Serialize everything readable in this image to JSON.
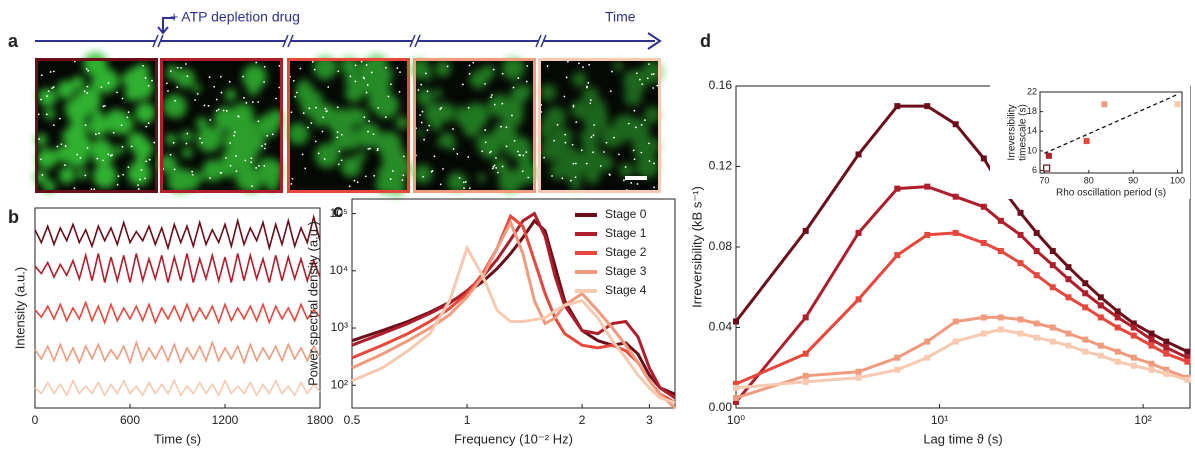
{
  "panel_labels": [
    "a",
    "b",
    "c",
    "d"
  ],
  "timeline": {
    "drug_label": "+ ATP depletion drug",
    "time_label": "Time",
    "color": "#2e3192"
  },
  "images": {
    "frame_colors": [
      "#6b0e1a",
      "#b01e2c",
      "#e8473c",
      "#f09a7e",
      "#f7c9b0"
    ]
  },
  "chart_data": [
    {
      "type": "line",
      "xlabel": "Time (s)",
      "ylabel": "Intensity (a.u.)",
      "x": [
        0,
        40,
        80,
        120,
        160,
        200,
        240,
        280,
        320,
        360,
        400,
        440,
        480,
        520,
        560,
        600,
        640,
        680,
        720,
        760,
        800,
        840,
        880,
        920,
        960,
        1000,
        1040,
        1080,
        1120,
        1160,
        1200,
        1240,
        1280,
        1320,
        1360,
        1400,
        1440,
        1480,
        1520,
        1560,
        1600,
        1640,
        1680,
        1720,
        1760,
        1800
      ],
      "xlim": [
        0,
        1800
      ],
      "xticks": [
        0,
        600,
        1200,
        1800
      ],
      "ylim": [
        0,
        5.5
      ],
      "series": [
        {
          "color": "#6b0e1a",
          "values": [
            4.9,
            4.55,
            5.0,
            4.5,
            4.95,
            4.6,
            5.05,
            4.55,
            4.9,
            4.45,
            5.0,
            4.6,
            4.95,
            4.5,
            5.1,
            4.55,
            4.85,
            4.6,
            5.0,
            4.5,
            4.95,
            4.4,
            5.05,
            4.55,
            5.0,
            4.45,
            5.1,
            4.5,
            4.9,
            4.55,
            5.05,
            4.45,
            5.15,
            4.5,
            4.95,
            4.6,
            5.1,
            4.4,
            5.05,
            4.5,
            5.15,
            4.45,
            4.95,
            4.55,
            5.25,
            4.6
          ]
        },
        {
          "color": "#b01e2c",
          "values": [
            3.9,
            3.7,
            4.0,
            3.6,
            3.95,
            3.65,
            4.05,
            3.55,
            4.2,
            3.5,
            4.25,
            3.45,
            4.15,
            3.5,
            4.2,
            3.45,
            4.25,
            3.5,
            4.1,
            3.55,
            4.2,
            3.45,
            4.15,
            3.5,
            4.25,
            3.45,
            4.1,
            3.55,
            4.2,
            3.5,
            4.15,
            3.45,
            4.25,
            3.5,
            4.2,
            3.55,
            4.1,
            3.45,
            4.2,
            3.5,
            4.15,
            3.55,
            4.1,
            3.5,
            4.05,
            3.6
          ]
        },
        {
          "color": "#e8473c",
          "values": [
            2.7,
            2.5,
            2.8,
            2.45,
            2.85,
            2.4,
            2.75,
            2.45,
            2.9,
            2.4,
            2.8,
            2.35,
            2.85,
            2.4,
            2.75,
            2.45,
            2.8,
            2.4,
            2.85,
            2.35,
            2.75,
            2.45,
            2.8,
            2.4,
            2.85,
            2.4,
            2.75,
            2.45,
            2.8,
            2.35,
            2.85,
            2.4,
            2.75,
            2.45,
            2.8,
            2.4,
            2.85,
            2.35,
            2.8,
            2.45,
            2.75,
            2.4,
            2.85,
            2.45,
            2.7,
            2.5
          ]
        },
        {
          "color": "#f09a7e",
          "values": [
            1.6,
            1.35,
            1.7,
            1.3,
            1.75,
            1.3,
            1.65,
            1.25,
            1.7,
            1.35,
            1.75,
            1.3,
            1.6,
            1.35,
            1.7,
            1.25,
            1.8,
            1.3,
            1.65,
            1.35,
            1.7,
            1.3,
            1.75,
            1.25,
            1.65,
            1.35,
            1.7,
            1.3,
            1.8,
            1.3,
            1.65,
            1.35,
            1.7,
            1.25,
            1.75,
            1.3,
            1.65,
            1.35,
            1.7,
            1.3,
            1.75,
            1.35,
            1.65,
            1.3,
            1.7,
            1.4
          ]
        },
        {
          "color": "#f7c9b0",
          "values": [
            0.55,
            0.4,
            0.7,
            0.4,
            0.65,
            0.35,
            0.75,
            0.4,
            0.6,
            0.4,
            0.7,
            0.35,
            0.65,
            0.4,
            0.75,
            0.4,
            0.6,
            0.35,
            0.7,
            0.4,
            0.65,
            0.4,
            0.75,
            0.35,
            0.6,
            0.4,
            0.7,
            0.4,
            0.65,
            0.35,
            0.75,
            0.4,
            0.6,
            0.4,
            0.7,
            0.35,
            0.65,
            0.4,
            0.75,
            0.4,
            0.6,
            0.35,
            0.7,
            0.4,
            0.65,
            0.45
          ]
        }
      ]
    },
    {
      "type": "line",
      "xlabel": "Frequency (10⁻² Hz)",
      "ylabel": "Power spectral density (a.u.)",
      "xscale": "log",
      "yscale": "log",
      "legend": "upper right",
      "x": [
        0.5,
        0.6,
        0.7,
        0.8,
        0.9,
        1.0,
        1.1,
        1.2,
        1.3,
        1.4,
        1.5,
        1.6,
        1.7,
        1.8,
        2.0,
        2.2,
        2.4,
        2.6,
        2.8,
        3.0,
        3.2,
        3.5
      ],
      "xlim": [
        0.5,
        3.5
      ],
      "xticks": [
        0.5,
        1,
        2,
        3
      ],
      "ylim": [
        40,
        180000
      ],
      "yticks": [
        {
          "value": 100,
          "label": "10²"
        },
        {
          "value": 1000,
          "label": "10³"
        },
        {
          "value": 10000,
          "label": "10⁴"
        },
        {
          "value": 100000,
          "label": "10⁵"
        }
      ],
      "series": [
        {
          "name": "Stage 0",
          "color": "#6b0e1a",
          "values": [
            600,
            900,
            1300,
            1900,
            2800,
            4200,
            6500,
            11000,
            20000,
            38000,
            75000,
            50000,
            12000,
            3000,
            900,
            600,
            500,
            550,
            350,
            150,
            90,
            70
          ]
        },
        {
          "name": "Stage 1",
          "color": "#b01e2c",
          "values": [
            500,
            800,
            1200,
            1800,
            2700,
            4500,
            8000,
            16000,
            35000,
            75000,
            100000,
            40000,
            8000,
            2500,
            900,
            800,
            1200,
            1300,
            700,
            200,
            90,
            60
          ]
        },
        {
          "name": "Stage 2",
          "color": "#e8473c",
          "values": [
            300,
            500,
            800,
            1300,
            2200,
            4000,
            9000,
            25000,
            90000,
            60000,
            15000,
            4000,
            1500,
            800,
            500,
            450,
            500,
            400,
            250,
            120,
            70,
            50
          ]
        },
        {
          "name": "Stage 3",
          "color": "#f09a7e",
          "values": [
            200,
            350,
            600,
            1000,
            1700,
            3500,
            8000,
            25000,
            70000,
            20000,
            3000,
            1200,
            1500,
            2500,
            4000,
            2000,
            1000,
            500,
            250,
            120,
            70,
            40
          ]
        },
        {
          "name": "Stage 4",
          "color": "#f7c9b0",
          "values": [
            120,
            200,
            400,
            800,
            3000,
            25000,
            8000,
            2000,
            1300,
            1300,
            1400,
            1500,
            2000,
            2500,
            3000,
            1500,
            600,
            300,
            150,
            90,
            60,
            50
          ]
        }
      ]
    },
    {
      "type": "line",
      "xlabel": "Lag time ϑ (s)",
      "ylabel": "Irreversibility (kB s⁻¹)",
      "xscale": "log",
      "markers": true,
      "x": [
        1,
        2.2,
        4,
        6.2,
        8.7,
        12,
        16.5,
        20,
        25,
        30,
        36,
        43,
        52,
        62,
        75,
        90,
        110,
        130,
        165
      ],
      "xlim": [
        1,
        170
      ],
      "xticks": [
        {
          "value": 1,
          "label": "10⁰"
        },
        {
          "value": 10,
          "label": "10¹"
        },
        {
          "value": 100,
          "label": "10²"
        }
      ],
      "ylim": [
        0,
        0.16
      ],
      "yticks": [
        {
          "value": 0,
          "label": "0.00"
        },
        {
          "value": 0.04,
          "label": "0.04"
        },
        {
          "value": 0.08,
          "label": "0.08"
        },
        {
          "value": 0.12,
          "label": "0.12"
        },
        {
          "value": 0.16,
          "label": "0.16"
        }
      ],
      "series": [
        {
          "color": "#6b0e1a",
          "values": [
            0.043,
            0.088,
            0.126,
            0.15,
            0.15,
            0.141,
            0.124,
            0.11,
            0.097,
            0.087,
            0.078,
            0.07,
            0.062,
            0.055,
            0.048,
            0.042,
            0.037,
            0.033,
            0.028
          ]
        },
        {
          "color": "#b01e2c",
          "values": [
            0.003,
            0.045,
            0.087,
            0.109,
            0.11,
            0.105,
            0.1,
            0.093,
            0.086,
            0.078,
            0.071,
            0.064,
            0.057,
            0.051,
            0.045,
            0.04,
            0.034,
            0.03,
            0.025
          ]
        },
        {
          "color": "#e8473c",
          "values": [
            0.012,
            0.027,
            0.054,
            0.076,
            0.086,
            0.087,
            0.082,
            0.078,
            0.072,
            0.066,
            0.06,
            0.055,
            0.05,
            0.045,
            0.04,
            0.036,
            0.031,
            0.027,
            0.023
          ]
        },
        {
          "color": "#f09a7e",
          "values": [
            0.005,
            0.016,
            0.018,
            0.025,
            0.033,
            0.043,
            0.045,
            0.045,
            0.044,
            0.042,
            0.04,
            0.037,
            0.034,
            0.031,
            0.028,
            0.025,
            0.022,
            0.019,
            0.015
          ]
        },
        {
          "color": "#f7c9b0",
          "values": [
            0.01,
            0.013,
            0.015,
            0.019,
            0.025,
            0.033,
            0.037,
            0.039,
            0.037,
            0.035,
            0.033,
            0.031,
            0.028,
            0.026,
            0.023,
            0.021,
            0.019,
            0.017,
            0.014
          ]
        }
      ]
    },
    {
      "type": "scatter",
      "xlabel": "Rho oscillation period (s)",
      "ylabel": [
        "Irreversibility",
        "timescale (s)"
      ],
      "x": [
        70.5,
        71,
        79.5,
        83.5,
        100
      ],
      "values": [
        6.5,
        9,
        12,
        19.5,
        19.5
      ],
      "colors": [
        "#6b0e1a",
        "#b01e2c",
        "#e8473c",
        "#f09a7e",
        "#f7c9b0"
      ],
      "open_markers": [
        true,
        false,
        false,
        false,
        false
      ],
      "xlim": [
        69,
        101
      ],
      "xticks": [
        70,
        80,
        90,
        100
      ],
      "ylim": [
        5.5,
        22
      ],
      "yticks": [
        6,
        10,
        14,
        18,
        22
      ],
      "fit_line": {
        "x": [
          70,
          100
        ],
        "values": [
          9.5,
          21.5
        ]
      }
    }
  ]
}
